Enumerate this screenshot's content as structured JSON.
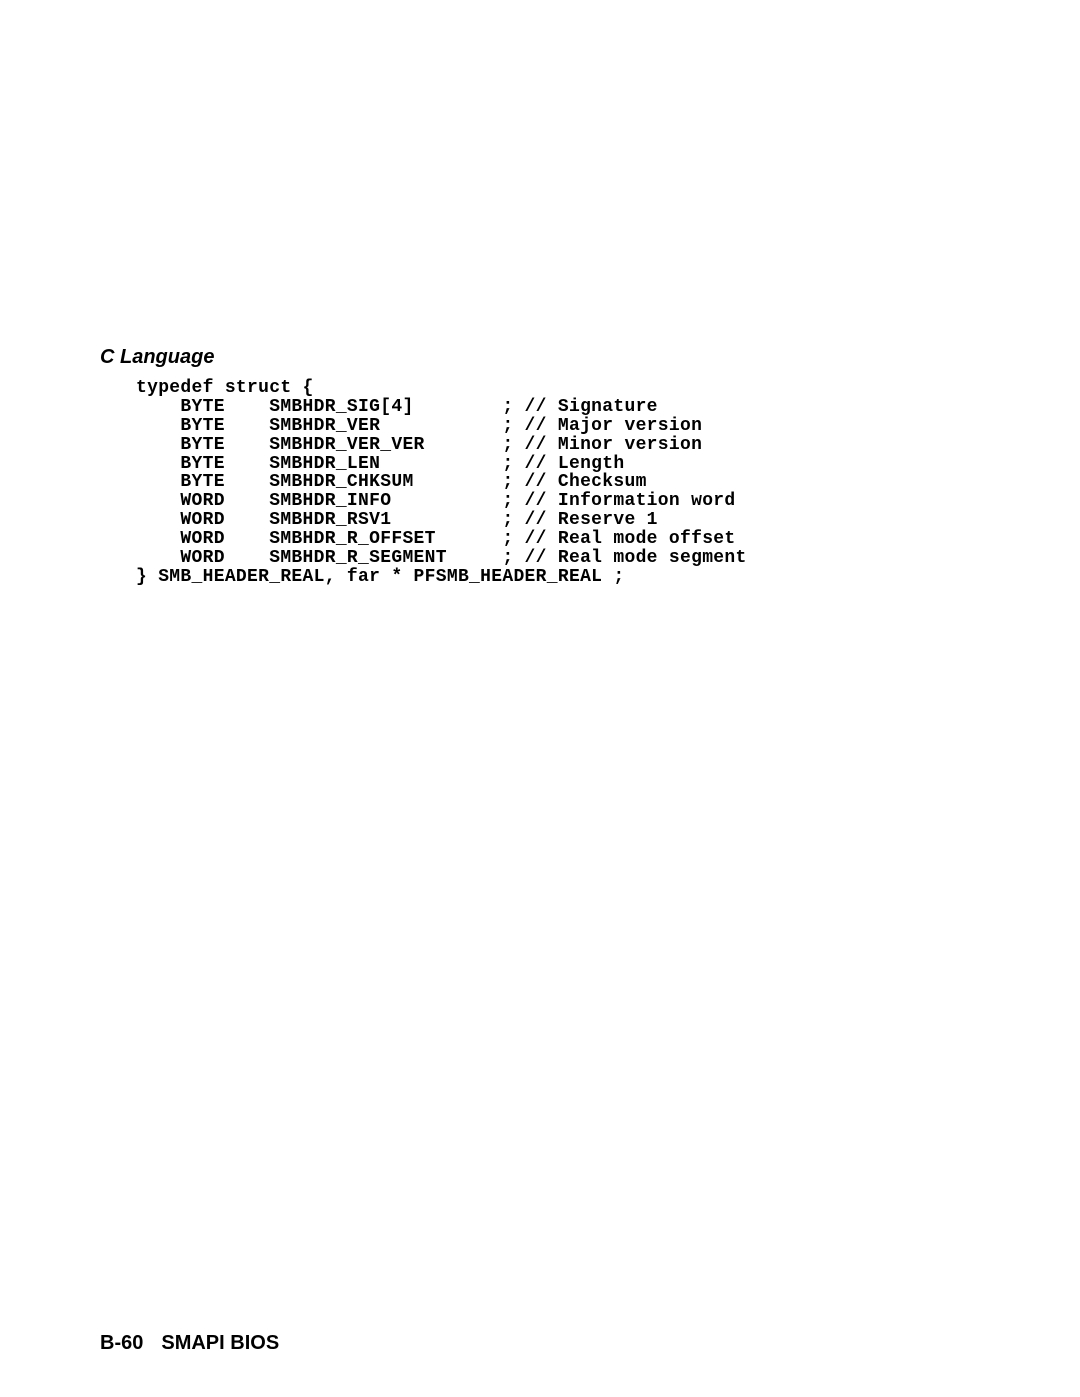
{
  "heading": "C Language",
  "code_lines": [
    "typedef struct {",
    "    BYTE    SMBHDR_SIG[4]        ; // Signature",
    "    BYTE    SMBHDR_VER           ; // Major version",
    "    BYTE    SMBHDR_VER_VER       ; // Minor version",
    "    BYTE    SMBHDR_LEN           ; // Length",
    "    BYTE    SMBHDR_CHKSUM        ; // Checksum",
    "    WORD    SMBHDR_INFO          ; // Information word",
    "    WORD    SMBHDR_RSV1          ; // Reserve 1",
    "    WORD    SMBHDR_R_OFFSET      ; // Real mode offset",
    "    WORD    SMBHDR_R_SEGMENT     ; // Real mode segment",
    "} SMB_HEADER_REAL, far * PFSMB_HEADER_REAL ;"
  ],
  "footer": {
    "page_number": "B-60",
    "title": "SMAPI BIOS"
  },
  "colors": {
    "background": "#ffffff",
    "text": "#000000"
  },
  "typography": {
    "heading_font": "Arial, bold italic",
    "heading_size_pt": 15,
    "code_font": "Courier, monospace",
    "code_size_pt": 13,
    "footer_size_pt": 15
  }
}
